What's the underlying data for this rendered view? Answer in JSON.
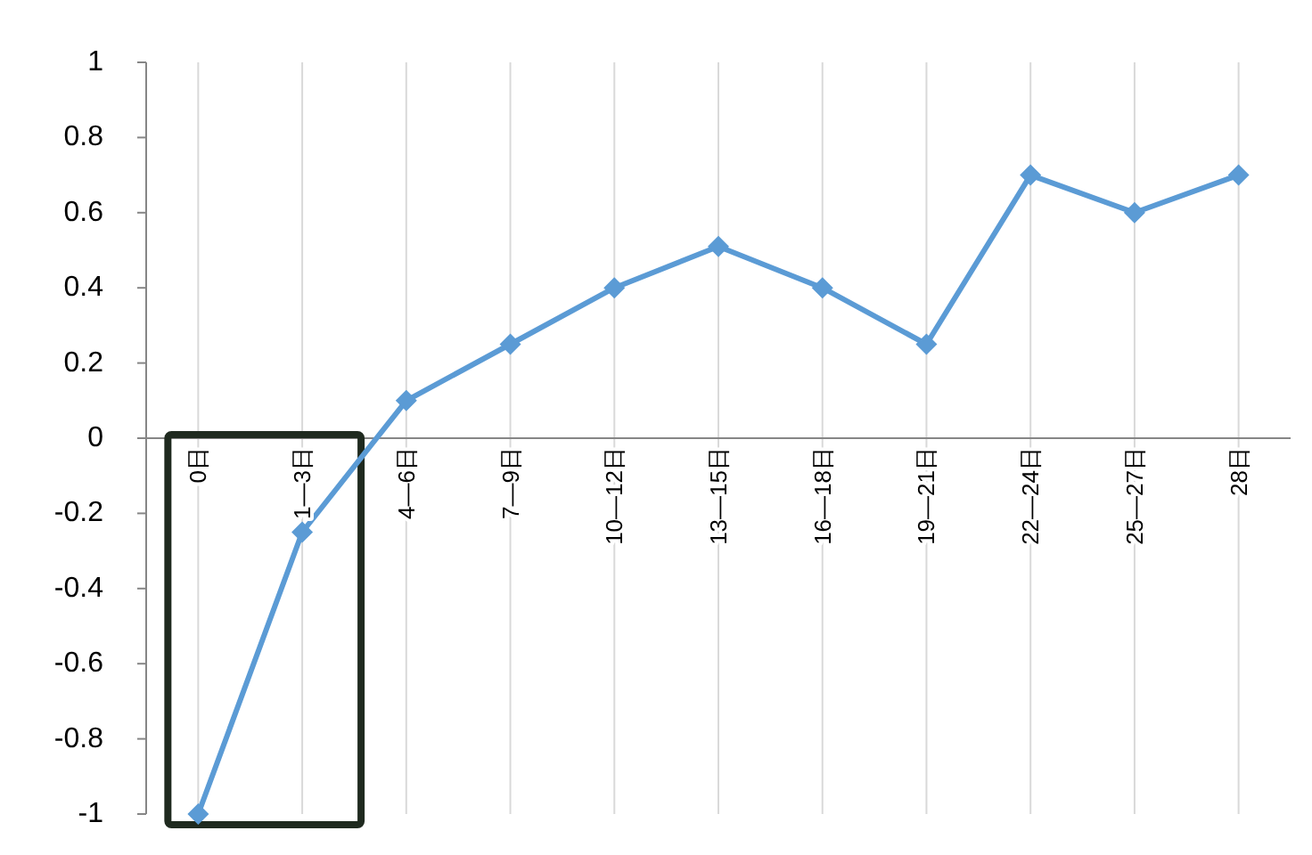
{
  "chart_data": {
    "type": "line",
    "categories": [
      "0日",
      "1—3日",
      "4—6日",
      "7—9日",
      "10—12日",
      "13—15日",
      "16—18日",
      "19—21日",
      "22—24日",
      "25—27日",
      "28日"
    ],
    "series": [
      {
        "color": "#5b9bd5",
        "values": [
          -1,
          -0.25,
          0.1,
          0.25,
          0.4,
          0.51,
          0.4,
          0.25,
          0.7,
          0.6,
          0.7
        ]
      }
    ],
    "ylim": [
      -1,
      1
    ],
    "yticks": [
      1,
      0.8,
      0.6,
      0.4,
      0.2,
      0,
      -0.2,
      -0.4,
      -0.6,
      -0.8,
      -1
    ],
    "grid": "x",
    "marker": "diamond",
    "line_style": "solid"
  }
}
